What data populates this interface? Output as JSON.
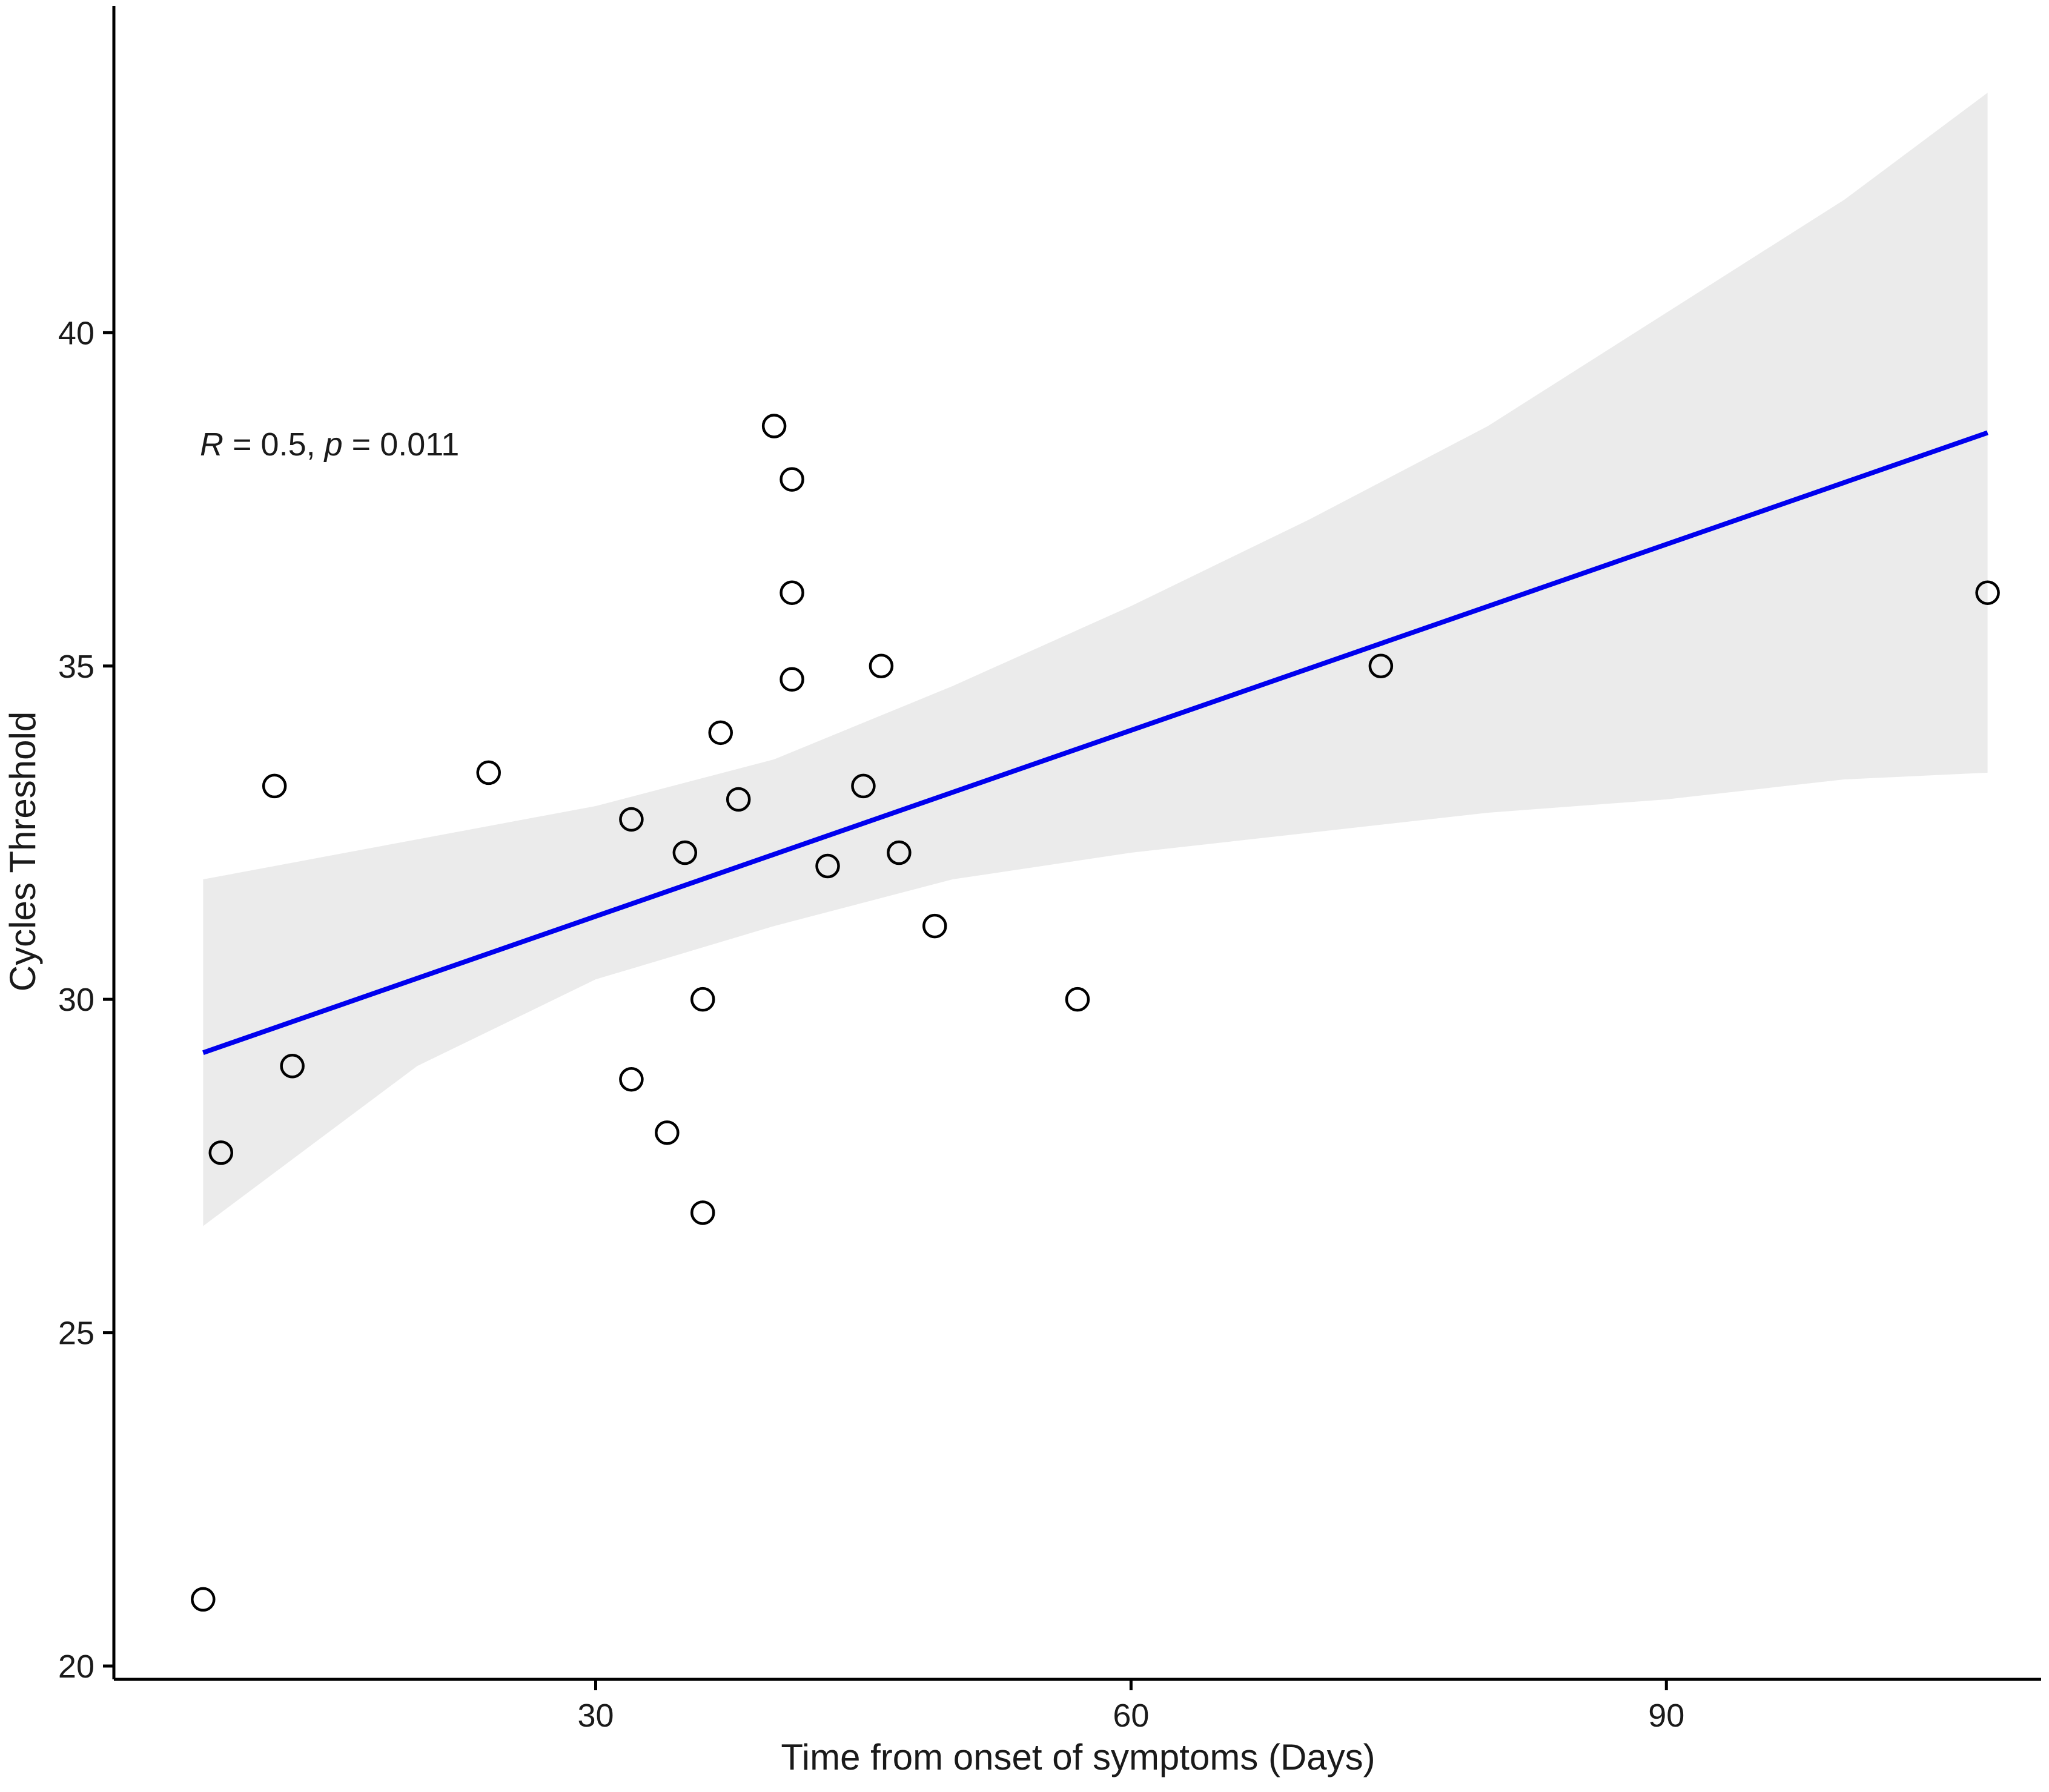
{
  "chart_data": {
    "type": "scatter",
    "title": "",
    "xlabel": "Time from onset of symptoms (Days)",
    "ylabel": "Cycles Threshold",
    "xlim": [
      3,
      111
    ],
    "ylim": [
      19.8,
      44.9
    ],
    "xticks": [
      30,
      60,
      90
    ],
    "xtick_labels": [
      "30",
      "60",
      "90"
    ],
    "yticks": [
      20,
      25,
      30,
      35,
      40
    ],
    "ytick_labels": [
      "20",
      "25",
      "30",
      "35",
      "40"
    ],
    "grid": false,
    "legend": "none",
    "annotation": {
      "r_symbol": "R",
      "r_value": " = 0.5, ",
      "p_symbol": "p",
      "p_value": " = 0.011"
    },
    "points": [
      {
        "x": 8,
        "y": 21.0
      },
      {
        "x": 9,
        "y": 27.7
      },
      {
        "x": 12,
        "y": 33.2
      },
      {
        "x": 13,
        "y": 29.0
      },
      {
        "x": 24,
        "y": 33.4
      },
      {
        "x": 32,
        "y": 32.7
      },
      {
        "x": 32,
        "y": 28.8
      },
      {
        "x": 34,
        "y": 28.0
      },
      {
        "x": 35,
        "y": 32.2
      },
      {
        "x": 36,
        "y": 30.0
      },
      {
        "x": 36,
        "y": 26.8
      },
      {
        "x": 37,
        "y": 34.0
      },
      {
        "x": 38,
        "y": 33.0
      },
      {
        "x": 40,
        "y": 38.6
      },
      {
        "x": 41,
        "y": 37.8
      },
      {
        "x": 41,
        "y": 36.1
      },
      {
        "x": 41,
        "y": 34.8
      },
      {
        "x": 43,
        "y": 32.0
      },
      {
        "x": 45,
        "y": 33.2
      },
      {
        "x": 46,
        "y": 35.0
      },
      {
        "x": 47,
        "y": 32.2
      },
      {
        "x": 49,
        "y": 31.1
      },
      {
        "x": 57,
        "y": 30.0
      },
      {
        "x": 74,
        "y": 35.0
      },
      {
        "x": 108,
        "y": 36.1
      }
    ],
    "fit_line": {
      "x": [
        8,
        108
      ],
      "y": [
        29.2,
        38.5
      ],
      "color": "#0000ee"
    },
    "confidence_band": {
      "x": [
        8,
        20,
        30,
        40,
        50,
        60,
        70,
        80,
        90,
        100,
        108
      ],
      "lower": [
        26.6,
        29.0,
        30.3,
        31.1,
        31.8,
        32.2,
        32.5,
        32.8,
        33.0,
        33.3,
        33.4
      ],
      "upper": [
        31.8,
        32.4,
        32.9,
        33.6,
        34.7,
        35.9,
        37.2,
        38.6,
        40.3,
        42.0,
        43.6
      ],
      "color": "#ebebeb"
    },
    "marker": {
      "shape": "open-circle",
      "edge_color": "#000000",
      "face_color": "none"
    }
  }
}
